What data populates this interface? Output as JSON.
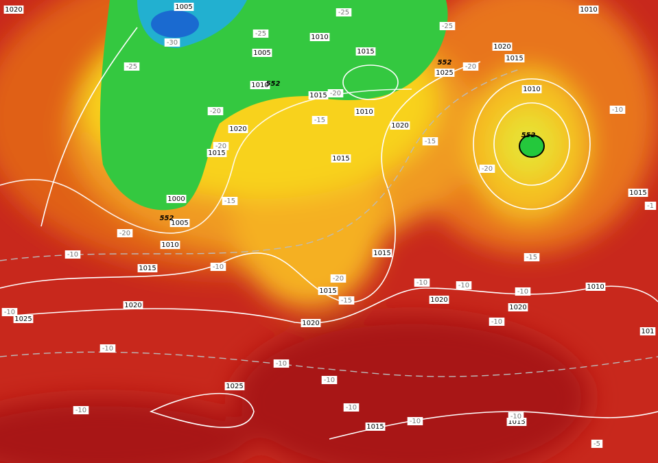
{
  "isobar_labels": [
    "1020",
    "1005",
    "1010",
    "1015",
    "1005",
    "1010",
    "1015",
    "1010",
    "1020",
    "1015",
    "1015",
    "1000",
    "1005",
    "1010",
    "1015",
    "1020",
    "1025",
    "1020",
    "1015",
    "1015",
    "1020",
    "1025",
    "1020",
    "1015",
    "1010",
    "1010",
    "1015",
    "1020",
    "1020",
    "1010",
    "1025",
    "1015",
    "1015",
    "101"
  ],
  "temperature_labels": [
    "-25",
    "-25",
    "-25",
    "-30",
    "-25",
    "-20",
    "-20",
    "-20",
    "-15",
    "-20",
    "-15",
    "-20",
    "-10",
    "-15",
    "-20",
    "-10",
    "-10",
    "-20",
    "-15",
    "-15",
    "-10",
    "-10",
    "-10",
    "-10",
    "-10",
    "-10",
    "-10",
    "-10",
    "-10",
    "-10",
    "-10",
    "-10",
    "-5",
    "-1"
  ],
  "geopotential_labels": [
    "552",
    "552",
    "552",
    "552"
  ]
}
